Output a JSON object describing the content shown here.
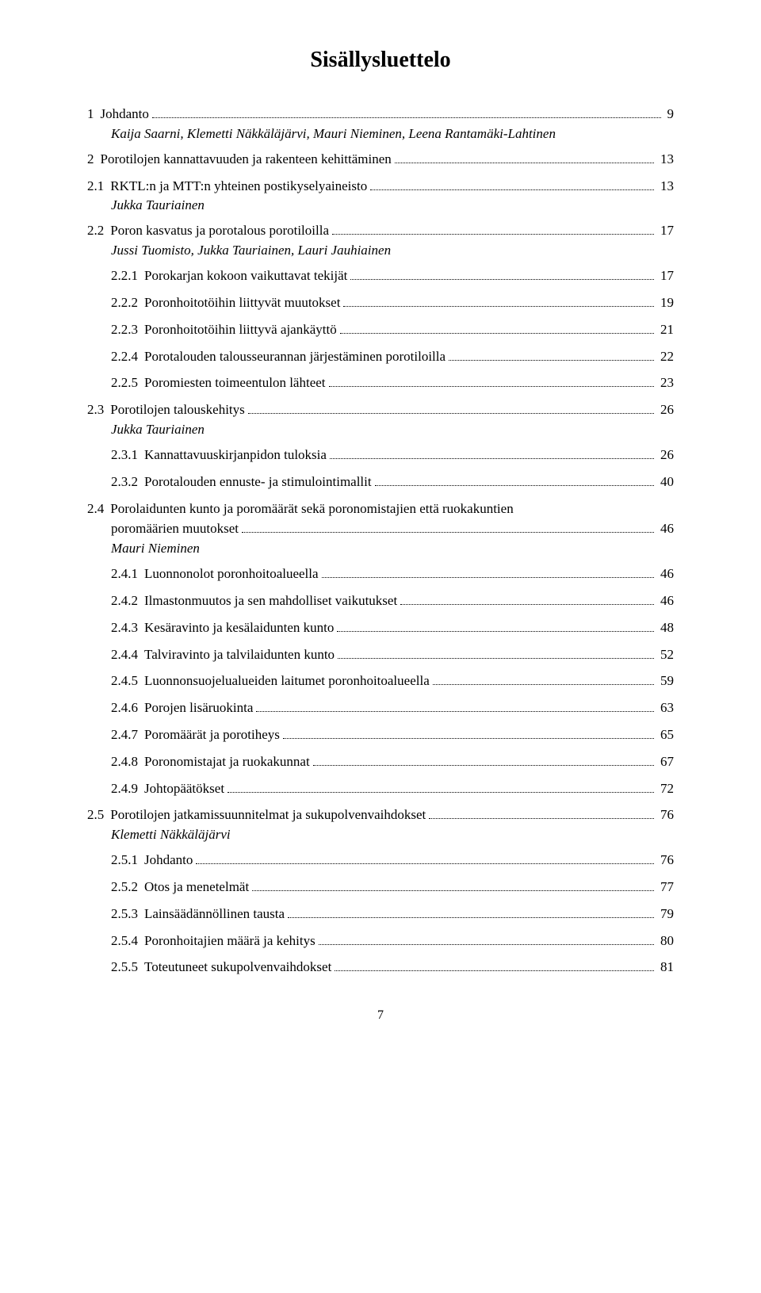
{
  "title": "Sisällysluettelo",
  "pageNumber": "7",
  "entries": [
    {
      "level": 1,
      "num": "1",
      "label": "Johdanto",
      "page": "9",
      "author": "Kaija Saarni, Klemetti Näkkäläjärvi, Mauri Nieminen, Leena Rantamäki-Lahtinen"
    },
    {
      "level": 1,
      "num": "2",
      "label": "Porotilojen kannattavuuden ja rakenteen kehittäminen",
      "page": "13"
    },
    {
      "level": 2,
      "num": "2.1",
      "label": "RKTL:n ja MTT:n yhteinen postikyselyaineisto",
      "page": "13",
      "author": "Jukka Tauriainen"
    },
    {
      "level": 2,
      "num": "2.2",
      "label": "Poron kasvatus ja porotalous porotiloilla",
      "page": "17",
      "author": "Jussi Tuomisto, Jukka Tauriainen, Lauri Jauhiainen"
    },
    {
      "level": 3,
      "num": "2.2.1",
      "label": "Porokarjan kokoon vaikuttavat tekijät",
      "page": "17"
    },
    {
      "level": 3,
      "num": "2.2.2",
      "label": "Poronhoitotöihin liittyvät muutokset",
      "page": "19"
    },
    {
      "level": 3,
      "num": "2.2.3",
      "label": "Poronhoitotöihin liittyvä ajankäyttö",
      "page": "21"
    },
    {
      "level": 3,
      "num": "2.2.4",
      "label": "Porotalouden talousseurannan järjestäminen porotiloilla",
      "page": "22"
    },
    {
      "level": 3,
      "num": "2.2.5",
      "label": "Poromiesten toimeentulon lähteet",
      "page": "23"
    },
    {
      "level": 2,
      "num": "2.3",
      "label": "Porotilojen talouskehitys",
      "page": "26",
      "author": "Jukka Tauriainen"
    },
    {
      "level": 3,
      "num": "2.3.1",
      "label": "Kannattavuuskirjanpidon tuloksia",
      "page": "26"
    },
    {
      "level": 3,
      "num": "2.3.2",
      "label": "Porotalouden ennuste- ja stimulointimallit",
      "page": "40"
    },
    {
      "level": 2,
      "num": "2.4",
      "label_multi": [
        "Porolaidunten kunto ja poromäärät sekä poronomistajien että ruokakuntien",
        "poromäärien muutokset"
      ],
      "page": "46",
      "author": "Mauri Nieminen"
    },
    {
      "level": 3,
      "num": "2.4.1",
      "label": "Luonnonolot poronhoitoalueella",
      "page": "46"
    },
    {
      "level": 3,
      "num": "2.4.2",
      "label": "Ilmastonmuutos ja sen mahdolliset vaikutukset",
      "page": "46"
    },
    {
      "level": 3,
      "num": "2.4.3",
      "label": "Kesäravinto ja kesälaidunten kunto",
      "page": "48"
    },
    {
      "level": 3,
      "num": "2.4.4",
      "label": "Talviravinto ja talvilaidunten kunto",
      "page": "52"
    },
    {
      "level": 3,
      "num": "2.4.5",
      "label": "Luonnonsuojelualueiden laitumet poronhoitoalueella",
      "page": "59"
    },
    {
      "level": 3,
      "num": "2.4.6",
      "label": "Porojen lisäruokinta",
      "page": "63"
    },
    {
      "level": 3,
      "num": "2.4.7",
      "label": "Poromäärät ja porotiheys",
      "page": "65"
    },
    {
      "level": 3,
      "num": "2.4.8",
      "label": "Poronomistajat ja ruokakunnat",
      "page": "67"
    },
    {
      "level": 3,
      "num": "2.4.9",
      "label": "Johtopäätökset",
      "page": "72"
    },
    {
      "level": 2,
      "num": "2.5",
      "label": "Porotilojen jatkamissuunnitelmat ja sukupolvenvaihdokset",
      "page": "76",
      "author": "Klemetti Näkkäläjärvi"
    },
    {
      "level": 3,
      "num": "2.5.1",
      "label": "Johdanto",
      "page": "76"
    },
    {
      "level": 3,
      "num": "2.5.2",
      "label": "Otos ja menetelmät",
      "page": "77"
    },
    {
      "level": 3,
      "num": "2.5.3",
      "label": "Lainsäädännöllinen tausta",
      "page": "79"
    },
    {
      "level": 3,
      "num": "2.5.4",
      "label": "Poronhoitajien määrä ja kehitys",
      "page": "80"
    },
    {
      "level": 3,
      "num": "2.5.5",
      "label": "Toteutuneet sukupolvenvaihdokset",
      "page": "81"
    }
  ]
}
